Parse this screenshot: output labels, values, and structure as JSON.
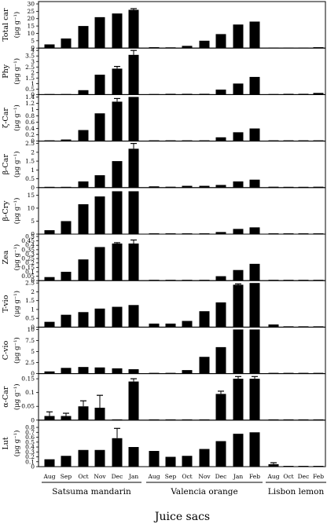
{
  "figure": {
    "xlabel": "Juice sacs",
    "groups": [
      {
        "label": "Satsuma mandarin",
        "months": [
          "Aug",
          "Sep",
          "Oct",
          "Nov",
          "Dec",
          "Jan"
        ]
      },
      {
        "label": "Valencia orange",
        "months": [
          "Aug",
          "Sep",
          "Oct",
          "Nov",
          "Dec",
          "Jan",
          "Feb"
        ]
      },
      {
        "label": "Lisbon lemon",
        "months": [
          "Aug",
          "Oct",
          "Dec",
          "Feb"
        ]
      }
    ]
  },
  "chart_data": [
    {
      "type": "bar",
      "ylabel": "Total car",
      "unit": "(μg g⁻¹)",
      "ylim": [
        0,
        30
      ],
      "yticks": [
        0,
        5,
        10,
        15,
        20,
        25,
        30
      ],
      "series": [
        {
          "name": "Satsuma mandarin",
          "values": [
            2.5,
            6.5,
            15,
            21,
            23.5,
            26
          ],
          "errors": [
            0,
            0,
            0,
            0,
            0,
            0.8
          ]
        },
        {
          "name": "Valencia orange",
          "values": [
            0.6,
            0.5,
            1.5,
            5,
            9.5,
            16,
            18
          ],
          "errors": [
            0,
            0,
            0,
            0,
            0,
            0,
            0
          ]
        },
        {
          "name": "Lisbon lemon",
          "values": [
            0.3,
            0.3,
            0.3,
            0.6
          ],
          "errors": [
            0,
            0,
            0,
            0
          ]
        }
      ]
    },
    {
      "type": "bar",
      "ylabel": "Phy",
      "unit": "(μg g⁻¹)",
      "ylim": [
        0,
        4
      ],
      "yticks": [
        0,
        0.5,
        1,
        1.5,
        2,
        2.5,
        3,
        3.5,
        4
      ],
      "series": [
        {
          "name": "Satsuma mandarin",
          "values": [
            0.05,
            0.05,
            0.4,
            1.8,
            2.35,
            3.6
          ],
          "errors": [
            0,
            0,
            0,
            0,
            0.2,
            0.4
          ]
        },
        {
          "name": "Valencia orange",
          "values": [
            0.05,
            0,
            0,
            0,
            0.45,
            1.0,
            1.6
          ],
          "errors": [
            0,
            0,
            0,
            0,
            0,
            0,
            0
          ]
        },
        {
          "name": "Lisbon lemon",
          "values": [
            0.05,
            0,
            0,
            0.15
          ],
          "errors": [
            0,
            0,
            0,
            0
          ]
        }
      ]
    },
    {
      "type": "bar",
      "ylabel": "ζ-Car",
      "unit": "(μg g⁻¹)",
      "ylim": [
        0,
        1.4
      ],
      "yticks": [
        0,
        0.2,
        0.4,
        0.6,
        0.8,
        1,
        1.2,
        1.4
      ],
      "series": [
        {
          "name": "Satsuma mandarin",
          "values": [
            0,
            0.05,
            0.35,
            0.88,
            1.25,
            1.4
          ],
          "errors": [
            0,
            0,
            0,
            0,
            0.1,
            0
          ]
        },
        {
          "name": "Valencia orange",
          "values": [
            0,
            0,
            0,
            0,
            0.12,
            0.28,
            0.4
          ],
          "errors": [
            0,
            0,
            0,
            0,
            0,
            0,
            0
          ]
        },
        {
          "name": "Lisbon lemon",
          "values": [
            0,
            0,
            0,
            0
          ],
          "errors": [
            0,
            0,
            0,
            0
          ]
        }
      ]
    },
    {
      "type": "bar",
      "ylabel": "β-Car",
      "unit": "(μg g⁻¹)",
      "ylim": [
        0,
        2.5
      ],
      "yticks": [
        0,
        0.5,
        1,
        1.5,
        2,
        2.5
      ],
      "series": [
        {
          "name": "Satsuma mandarin",
          "values": [
            0,
            0,
            0.35,
            0.7,
            1.5,
            2.2
          ],
          "errors": [
            0,
            0,
            0,
            0,
            0,
            0.3
          ]
        },
        {
          "name": "Valencia orange",
          "values": [
            0.07,
            0.05,
            0.1,
            0.1,
            0.15,
            0.35,
            0.45
          ],
          "errors": [
            0,
            0,
            0,
            0,
            0,
            0,
            0
          ]
        },
        {
          "name": "Lisbon lemon",
          "values": [
            0.05,
            0,
            0,
            0.05
          ],
          "errors": [
            0,
            0,
            0,
            0
          ]
        }
      ]
    },
    {
      "type": "bar",
      "ylabel": "β-Cry",
      "unit": "(μg g⁻¹)",
      "ylim": [
        0,
        17
      ],
      "yticks": [
        0,
        5,
        10,
        15
      ],
      "series": [
        {
          "name": "Satsuma mandarin",
          "values": [
            1.5,
            5,
            11.5,
            14.5,
            16.5,
            16.5
          ],
          "errors": [
            0,
            0,
            0,
            0,
            0,
            0
          ]
        },
        {
          "name": "Valencia orange",
          "values": [
            0,
            0,
            0,
            0,
            0.8,
            2.0,
            2.6
          ],
          "errors": [
            0,
            0,
            0,
            0,
            0,
            0,
            0
          ]
        },
        {
          "name": "Lisbon lemon",
          "values": [
            0,
            0,
            0,
            0.3
          ],
          "errors": [
            0,
            0,
            0,
            0
          ]
        }
      ]
    },
    {
      "type": "bar",
      "ylabel": "Zea",
      "unit": "(μg g⁻¹)",
      "ylim": [
        0,
        0.5
      ],
      "yticks": [
        0,
        0.05,
        0.1,
        0.15,
        0.2,
        0.25,
        0.3,
        0.35,
        0.4,
        0.45,
        0.5
      ],
      "series": [
        {
          "name": "Satsuma mandarin",
          "values": [
            0.04,
            0.1,
            0.24,
            0.38,
            0.42,
            0.42
          ],
          "errors": [
            0,
            0,
            0,
            0,
            0.01,
            0.04
          ]
        },
        {
          "name": "Valencia orange",
          "values": [
            0,
            0,
            0,
            0,
            0.05,
            0.12,
            0.19
          ],
          "errors": [
            0,
            0,
            0,
            0,
            0,
            0,
            0
          ]
        },
        {
          "name": "Lisbon lemon",
          "values": [
            0,
            0,
            0,
            0
          ],
          "errors": [
            0,
            0,
            0,
            0
          ]
        }
      ]
    },
    {
      "type": "bar",
      "ylabel": "T-vio",
      "unit": "(μg g⁻¹)",
      "ylim": [
        0,
        2.5
      ],
      "yticks": [
        0,
        0.5,
        1,
        1.5,
        2,
        2.5
      ],
      "series": [
        {
          "name": "Satsuma mandarin",
          "values": [
            0.3,
            0.7,
            0.85,
            1.05,
            1.15,
            1.25
          ],
          "errors": [
            0,
            0,
            0,
            0,
            0,
            0
          ]
        },
        {
          "name": "Valencia orange",
          "values": [
            0.2,
            0.2,
            0.35,
            0.9,
            1.4,
            2.4,
            2.5
          ],
          "errors": [
            0,
            0,
            0,
            0,
            0,
            0.05,
            0
          ]
        },
        {
          "name": "Lisbon lemon",
          "values": [
            0.15,
            0,
            0,
            0
          ],
          "errors": [
            0,
            0,
            0,
            0
          ]
        }
      ]
    },
    {
      "type": "bar",
      "ylabel": "C-vio",
      "unit": "(μg g⁻¹)",
      "ylim": [
        0,
        10
      ],
      "yticks": [
        0,
        2.5,
        5,
        7.5,
        10
      ],
      "series": [
        {
          "name": "Satsuma mandarin",
          "values": [
            0.5,
            1.3,
            1.5,
            1.4,
            1.2,
            1.0
          ],
          "errors": [
            0,
            0,
            0,
            0,
            0,
            0
          ]
        },
        {
          "name": "Valencia orange",
          "values": [
            0,
            0,
            0.8,
            3.8,
            6,
            10,
            10
          ],
          "errors": [
            0,
            0,
            0,
            0,
            0,
            0,
            0
          ]
        },
        {
          "name": "Lisbon lemon",
          "values": [
            0,
            0,
            0,
            0
          ],
          "errors": [
            0,
            0,
            0,
            0
          ]
        }
      ]
    },
    {
      "type": "bar",
      "ylabel": "α-Car",
      "unit": "(μg g⁻¹)",
      "ylim": [
        0,
        0.16
      ],
      "yticks": [
        0,
        0.05,
        0.1,
        0.15
      ],
      "series": [
        {
          "name": "Satsuma mandarin",
          "values": [
            0.015,
            0.015,
            0.05,
            0.045,
            0,
            0.14
          ],
          "errors": [
            0.015,
            0.01,
            0.02,
            0.045,
            0,
            0.01
          ]
        },
        {
          "name": "Valencia orange",
          "values": [
            0,
            0,
            0,
            0,
            0.095,
            0.15,
            0.15
          ],
          "errors": [
            0,
            0,
            0,
            0,
            0.01,
            0.008,
            0.008
          ]
        },
        {
          "name": "Lisbon lemon",
          "values": [
            0,
            0,
            0,
            0
          ],
          "errors": [
            0,
            0,
            0,
            0
          ]
        }
      ]
    },
    {
      "type": "bar",
      "ylabel": "Lut",
      "unit": "(μg g⁻¹)",
      "ylim": [
        0,
        0.9
      ],
      "yticks": [
        0,
        0.1,
        0.2,
        0.3,
        0.4,
        0.5,
        0.6,
        0.7,
        0.8
      ],
      "series": [
        {
          "name": "Satsuma mandarin",
          "values": [
            0.15,
            0.22,
            0.34,
            0.34,
            0.58,
            0.4
          ],
          "errors": [
            0,
            0,
            0,
            0,
            0.2,
            0
          ]
        },
        {
          "name": "Valencia orange",
          "values": [
            0.32,
            0.2,
            0.22,
            0.36,
            0.52,
            0.67,
            0.7
          ],
          "errors": [
            0,
            0,
            0,
            0,
            0,
            0,
            0
          ]
        },
        {
          "name": "Lisbon lemon",
          "values": [
            0.05,
            0,
            0,
            0
          ],
          "errors": [
            0.03,
            0,
            0,
            0
          ]
        }
      ]
    }
  ]
}
